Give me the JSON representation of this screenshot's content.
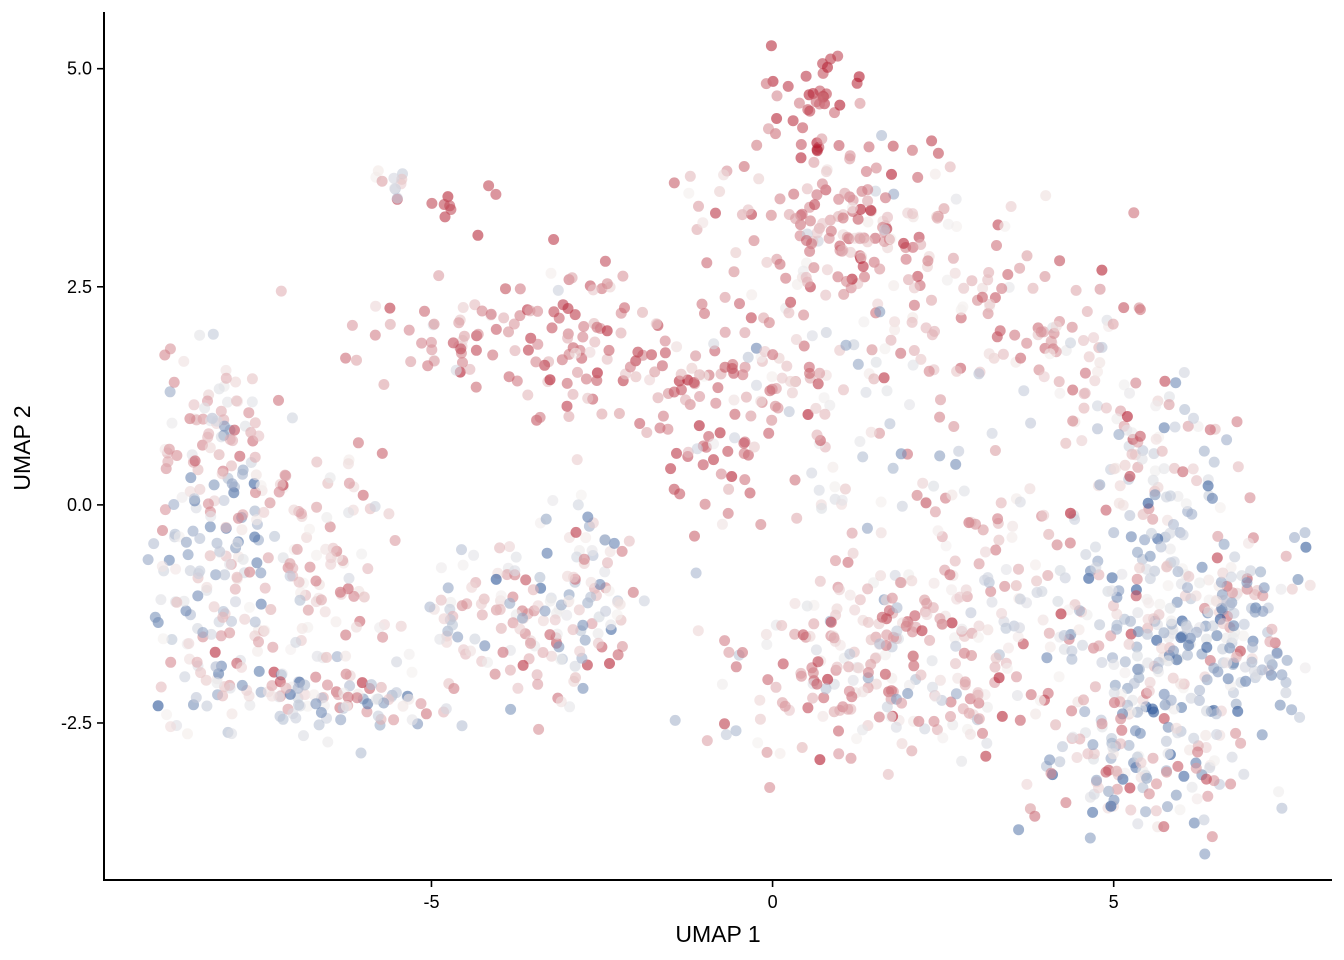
{
  "chart_data": {
    "type": "scatter",
    "title": "",
    "xlabel": "UMAP 1",
    "ylabel": "UMAP 2",
    "xlim": [
      -9.8,
      8.2
    ],
    "ylim": [
      -4.3,
      5.65
    ],
    "x_ticks": [
      -5,
      0,
      5
    ],
    "x_tick_labels": [
      "-5",
      "0",
      "5"
    ],
    "y_ticks": [
      -2.5,
      0,
      2.5,
      5
    ],
    "y_tick_labels": [
      "-2.5",
      "0.0",
      "2.5",
      "5.0"
    ],
    "grid": false,
    "legend": "none",
    "color_scale": {
      "name": "RdBu diverging",
      "low": "#2b5597",
      "mid": "#f4f0ee",
      "high": "#b2182b",
      "point_opacity": 0.6
    },
    "point_color_value_range": [
      0,
      1
    ],
    "points_note_clusters": [
      {
        "cx": -8.2,
        "cy": -0.6,
        "sx": 0.5,
        "sy": 1.1,
        "n": 140,
        "vmean": 0.42,
        "vsd": 0.22
      },
      {
        "cx": -7.2,
        "cy": -2.1,
        "sx": 0.7,
        "sy": 0.3,
        "n": 70,
        "vmean": 0.5,
        "vsd": 0.2
      },
      {
        "cx": -6.8,
        "cy": -0.6,
        "sx": 0.5,
        "sy": 0.6,
        "n": 90,
        "vmean": 0.62,
        "vsd": 0.12
      },
      {
        "cx": -8.0,
        "cy": 0.9,
        "sx": 0.5,
        "sy": 0.5,
        "n": 60,
        "vmean": 0.6,
        "vsd": 0.14
      },
      {
        "cx": -6.0,
        "cy": -2.3,
        "sx": 0.6,
        "sy": 0.12,
        "n": 40,
        "vmean": 0.5,
        "vsd": 0.2
      },
      {
        "cx": -4.5,
        "cy": 1.9,
        "sx": 0.7,
        "sy": 0.25,
        "n": 60,
        "vmean": 0.72,
        "vsd": 0.14
      },
      {
        "cx": -4.6,
        "cy": 3.45,
        "sx": 0.3,
        "sy": 0.15,
        "n": 10,
        "vmean": 0.9,
        "vsd": 0.05
      },
      {
        "cx": -5.6,
        "cy": 3.7,
        "sx": 0.2,
        "sy": 0.12,
        "n": 10,
        "vmean": 0.45,
        "vsd": 0.15
      },
      {
        "cx": -4.0,
        "cy": -1.3,
        "sx": 0.8,
        "sy": 0.5,
        "n": 110,
        "vmean": 0.55,
        "vsd": 0.18
      },
      {
        "cx": -2.8,
        "cy": -1.0,
        "sx": 0.4,
        "sy": 0.6,
        "n": 70,
        "vmean": 0.5,
        "vsd": 0.2
      },
      {
        "cx": -2.5,
        "cy": 1.8,
        "sx": 0.6,
        "sy": 0.6,
        "n": 80,
        "vmean": 0.74,
        "vsd": 0.14
      },
      {
        "cx": -0.8,
        "cy": 1.0,
        "sx": 0.4,
        "sy": 0.6,
        "n": 60,
        "vmean": 0.82,
        "vsd": 0.12
      },
      {
        "cx": 0.7,
        "cy": 4.7,
        "sx": 0.35,
        "sy": 0.35,
        "n": 40,
        "vmean": 0.88,
        "vsd": 0.08
      },
      {
        "cx": 1.0,
        "cy": 3.3,
        "sx": 1.0,
        "sy": 0.45,
        "n": 150,
        "vmean": 0.72,
        "vsd": 0.14
      },
      {
        "cx": 2.5,
        "cy": 2.3,
        "sx": 1.0,
        "sy": 0.5,
        "n": 90,
        "vmean": 0.66,
        "vsd": 0.14
      },
      {
        "cx": 0.3,
        "cy": 1.5,
        "sx": 0.8,
        "sy": 0.5,
        "n": 70,
        "vmean": 0.6,
        "vsd": 0.18
      },
      {
        "cx": 1.5,
        "cy": 0.2,
        "sx": 0.8,
        "sy": 0.7,
        "n": 50,
        "vmean": 0.55,
        "vsd": 0.18
      },
      {
        "cx": 1.5,
        "cy": -1.8,
        "sx": 1.3,
        "sy": 0.55,
        "n": 200,
        "vmean": 0.62,
        "vsd": 0.16
      },
      {
        "cx": 3.0,
        "cy": -1.0,
        "sx": 0.9,
        "sy": 0.7,
        "n": 90,
        "vmean": 0.6,
        "vsd": 0.16
      },
      {
        "cx": 4.5,
        "cy": 1.6,
        "sx": 0.6,
        "sy": 0.6,
        "n": 50,
        "vmean": 0.62,
        "vsd": 0.14
      },
      {
        "cx": 5.5,
        "cy": 0.6,
        "sx": 0.6,
        "sy": 0.6,
        "n": 60,
        "vmean": 0.5,
        "vsd": 0.18
      },
      {
        "cx": 5.8,
        "cy": -1.4,
        "sx": 1.0,
        "sy": 0.9,
        "n": 300,
        "vmean": 0.42,
        "vsd": 0.22
      },
      {
        "cx": 5.2,
        "cy": -3.0,
        "sx": 0.8,
        "sy": 0.4,
        "n": 110,
        "vmean": 0.45,
        "vsd": 0.22
      },
      {
        "cx": 6.8,
        "cy": -1.5,
        "sx": 0.4,
        "sy": 0.5,
        "n": 60,
        "vmean": 0.35,
        "vsd": 0.2
      }
    ]
  }
}
